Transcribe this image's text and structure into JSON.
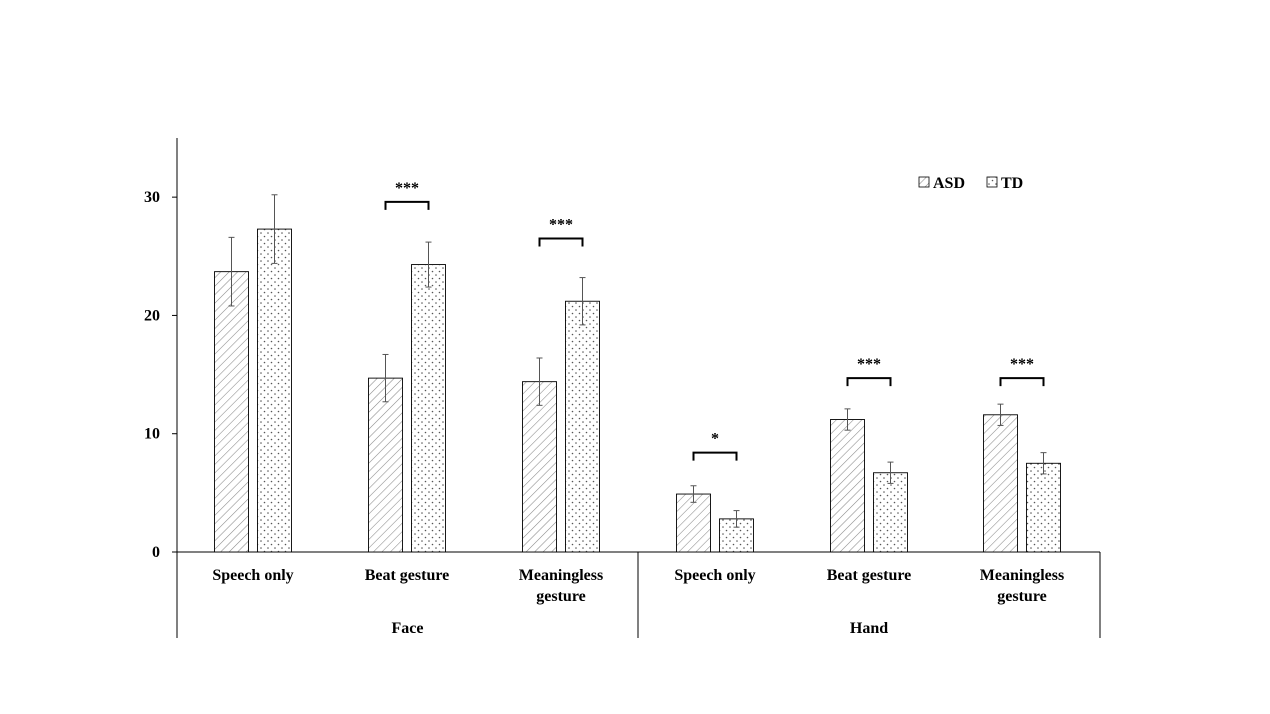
{
  "chart_data": {
    "type": "bar",
    "title": "",
    "xlabel": "",
    "ylabel": "",
    "ylim": [
      0,
      35
    ],
    "yticks": [
      "0",
      "10",
      "20",
      "30"
    ],
    "grid": false,
    "legend_position": "top-right",
    "groups": [
      {
        "label": "Face",
        "categories": [
          {
            "lines": [
              "Speech only"
            ]
          },
          {
            "lines": [
              "Beat gesture"
            ]
          },
          {
            "lines": [
              "Meaningless",
              "gesture"
            ]
          }
        ]
      },
      {
        "label": "Hand",
        "categories": [
          {
            "lines": [
              "Speech only"
            ]
          },
          {
            "lines": [
              "Beat gesture"
            ]
          },
          {
            "lines": [
              "Meaningless",
              "gesture"
            ]
          }
        ]
      }
    ],
    "series": [
      {
        "name": "ASD",
        "pattern": "diagonal-hatch",
        "values": [
          23.7,
          14.7,
          14.4,
          4.9,
          11.2,
          11.6
        ],
        "errors": [
          2.9,
          2.0,
          2.0,
          0.7,
          0.9,
          0.9
        ]
      },
      {
        "name": "TD",
        "pattern": "dots",
        "values": [
          27.3,
          24.3,
          21.2,
          2.8,
          6.7,
          7.5
        ],
        "errors": [
          2.9,
          1.9,
          2.0,
          0.7,
          0.9,
          0.9
        ]
      }
    ],
    "significance": [
      {
        "category_index": 1,
        "label": "***",
        "bracket_level": 29.6
      },
      {
        "category_index": 2,
        "label": "***",
        "bracket_level": 26.5
      },
      {
        "category_index": 3,
        "label": "*",
        "bracket_level": 8.4
      },
      {
        "category_index": 4,
        "label": "***",
        "bracket_level": 14.7
      },
      {
        "category_index": 5,
        "label": "***",
        "bracket_level": 14.7
      }
    ]
  }
}
